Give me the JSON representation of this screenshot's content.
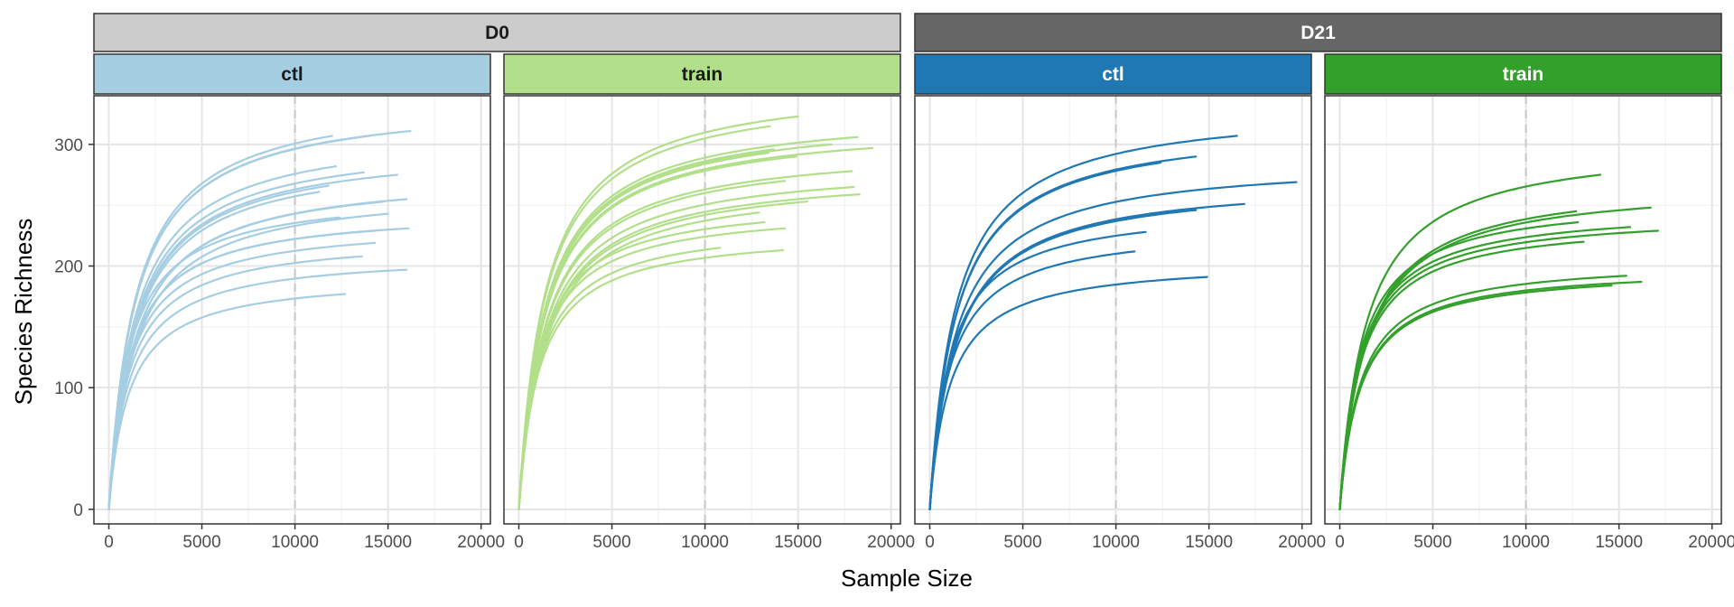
{
  "chart_data": {
    "type": "line",
    "xlabel": "Sample Size",
    "ylabel": "Species Richness",
    "xlim": [
      -800,
      20500
    ],
    "ylim": [
      -12,
      340
    ],
    "x_ticks": [
      0,
      5000,
      10000,
      15000,
      20000
    ],
    "y_ticks": [
      0,
      100,
      200,
      300
    ],
    "reference_x": 10000,
    "grid": true,
    "facet_rows": [
      {
        "label": "D0",
        "bg": "#cccccc",
        "text_color": "#1a1a1a"
      },
      {
        "label": "D21",
        "bg": "#666666",
        "text_color": "#ffffff"
      }
    ],
    "panels": [
      {
        "day": "D0",
        "group": "ctl",
        "strip_bg": "#a6cee3",
        "strip_text_color": "#1a1a1a",
        "color": "#a6cee3",
        "curves": [
          {
            "end_x": 16200,
            "end_y": 311
          },
          {
            "end_x": 14000,
            "end_y": 307
          },
          {
            "end_x": 12000,
            "end_y": 307
          },
          {
            "end_x": 12500,
            "end_y": 304
          },
          {
            "end_x": 12200,
            "end_y": 282
          },
          {
            "end_x": 13700,
            "end_y": 277
          },
          {
            "end_x": 15500,
            "end_y": 275
          },
          {
            "end_x": 11800,
            "end_y": 266
          },
          {
            "end_x": 11300,
            "end_y": 261
          },
          {
            "end_x": 16000,
            "end_y": 255
          },
          {
            "end_x": 14800,
            "end_y": 253
          },
          {
            "end_x": 15000,
            "end_y": 243
          },
          {
            "end_x": 12400,
            "end_y": 240
          },
          {
            "end_x": 16100,
            "end_y": 231
          },
          {
            "end_x": 14300,
            "end_y": 229
          },
          {
            "end_x": 14300,
            "end_y": 219
          },
          {
            "end_x": 13600,
            "end_y": 208
          },
          {
            "end_x": 16000,
            "end_y": 197
          },
          {
            "end_x": 12700,
            "end_y": 177
          }
        ]
      },
      {
        "day": "D0",
        "group": "train",
        "strip_bg": "#b2df8a",
        "strip_text_color": "#1a1a1a",
        "color": "#b2df8a",
        "curves": [
          {
            "end_x": 15000,
            "end_y": 323
          },
          {
            "end_x": 13500,
            "end_y": 315
          },
          {
            "end_x": 18200,
            "end_y": 306
          },
          {
            "end_x": 19000,
            "end_y": 297
          },
          {
            "end_x": 16800,
            "end_y": 300
          },
          {
            "end_x": 13700,
            "end_y": 296
          },
          {
            "end_x": 13400,
            "end_y": 293
          },
          {
            "end_x": 14900,
            "end_y": 290
          },
          {
            "end_x": 12300,
            "end_y": 286
          },
          {
            "end_x": 17900,
            "end_y": 278
          },
          {
            "end_x": 14300,
            "end_y": 270
          },
          {
            "end_x": 18000,
            "end_y": 265
          },
          {
            "end_x": 18300,
            "end_y": 259
          },
          {
            "end_x": 15500,
            "end_y": 253
          },
          {
            "end_x": 12900,
            "end_y": 244
          },
          {
            "end_x": 13200,
            "end_y": 236
          },
          {
            "end_x": 14300,
            "end_y": 231
          },
          {
            "end_x": 14200,
            "end_y": 213
          },
          {
            "end_x": 10800,
            "end_y": 215
          }
        ]
      },
      {
        "day": "D21",
        "group": "ctl",
        "strip_bg": "#1f78b4",
        "strip_text_color": "#ffffff",
        "color": "#1f78b4",
        "curves": [
          {
            "end_x": 16500,
            "end_y": 307
          },
          {
            "end_x": 14300,
            "end_y": 290
          },
          {
            "end_x": 12400,
            "end_y": 285
          },
          {
            "end_x": 19700,
            "end_y": 269
          },
          {
            "end_x": 16900,
            "end_y": 251
          },
          {
            "end_x": 14300,
            "end_y": 246
          },
          {
            "end_x": 11600,
            "end_y": 228
          },
          {
            "end_x": 11000,
            "end_y": 212
          },
          {
            "end_x": 14900,
            "end_y": 191
          }
        ]
      },
      {
        "day": "D21",
        "group": "train",
        "strip_bg": "#33a02c",
        "strip_text_color": "#ffffff",
        "color": "#33a02c",
        "curves": [
          {
            "end_x": 14000,
            "end_y": 275
          },
          {
            "end_x": 16700,
            "end_y": 248
          },
          {
            "end_x": 12700,
            "end_y": 245
          },
          {
            "end_x": 12800,
            "end_y": 236
          },
          {
            "end_x": 15600,
            "end_y": 232
          },
          {
            "end_x": 17100,
            "end_y": 229
          },
          {
            "end_x": 13100,
            "end_y": 220
          },
          {
            "end_x": 15400,
            "end_y": 192
          },
          {
            "end_x": 16200,
            "end_y": 187
          },
          {
            "end_x": 14600,
            "end_y": 184
          }
        ]
      }
    ]
  }
}
